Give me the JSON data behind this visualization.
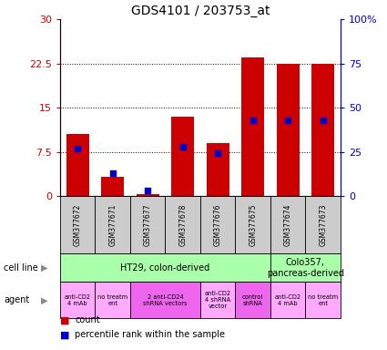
{
  "title": "GDS4101 / 203753_at",
  "samples": [
    "GSM377672",
    "GSM377671",
    "GSM377677",
    "GSM377678",
    "GSM377676",
    "GSM377675",
    "GSM377674",
    "GSM377673"
  ],
  "red_values": [
    10.5,
    3.2,
    0.3,
    13.5,
    9.0,
    23.5,
    22.5,
    22.5
  ],
  "blue_values_pct": [
    27,
    13,
    3,
    28,
    24,
    43,
    43,
    43
  ],
  "ylim_left": [
    0,
    30
  ],
  "ylim_right": [
    0,
    100
  ],
  "yticks_left": [
    0,
    7.5,
    15,
    22.5,
    30
  ],
  "yticks_right": [
    0,
    25,
    50,
    75,
    100
  ],
  "ytick_labels_left": [
    "0",
    "7.5",
    "15",
    "22.5",
    "30"
  ],
  "ytick_labels_right": [
    "0",
    "25",
    "50",
    "75",
    "100%"
  ],
  "cell_line_labels": [
    {
      "text": "HT29, colon-derived",
      "span": [
        0,
        6
      ],
      "color": "#aaffaa"
    },
    {
      "text": "Colo357,\npancreas-derived",
      "span": [
        6,
        8
      ],
      "color": "#aaffaa"
    }
  ],
  "agent_groups": [
    {
      "text": "anti-CD2\n4 mAb",
      "span": [
        0,
        1
      ],
      "color": "#ffaaff"
    },
    {
      "text": "no treatm\nent",
      "span": [
        1,
        2
      ],
      "color": "#ffaaff"
    },
    {
      "text": "2 anti-CD24\nshRNA vectors",
      "span": [
        2,
        4
      ],
      "color": "#ee66ee"
    },
    {
      "text": "anti-CD2\n4 shRNA\nvector",
      "span": [
        4,
        5
      ],
      "color": "#ffaaff"
    },
    {
      "text": "control\nshRNA",
      "span": [
        5,
        6
      ],
      "color": "#ee66ee"
    },
    {
      "text": "anti-CD2\n4 mAb",
      "span": [
        6,
        7
      ],
      "color": "#ffaaff"
    },
    {
      "text": "no treatm\nent",
      "span": [
        7,
        8
      ],
      "color": "#ffaaff"
    }
  ],
  "bar_color": "#cc0000",
  "dot_color": "#0000cc",
  "left_axis_color": "#cc0000",
  "right_axis_color": "#0000cc",
  "sample_bg_color": "#cccccc",
  "fig_width": 4.25,
  "fig_height": 3.84,
  "dpi": 100
}
